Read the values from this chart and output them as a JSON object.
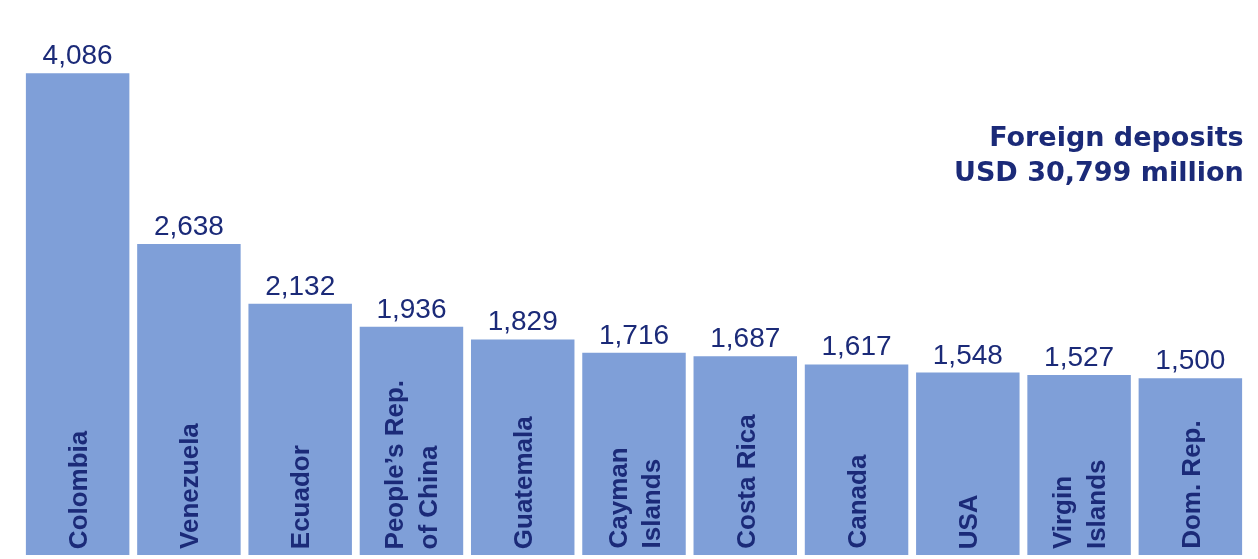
{
  "chart_data": {
    "type": "bar",
    "title": "Foreign deposits",
    "subtitle": "USD 30,799 million",
    "categories": [
      "Colombia",
      "Venezuela",
      "Ecuador",
      "People’s Rep. of China",
      "Guatemala",
      "Cayman Islands",
      "Costa Rica",
      "Canada",
      "USA",
      "Virgin Islands",
      "Dom. Rep."
    ],
    "values": [
      4086,
      2638,
      2132,
      1936,
      1829,
      1716,
      1687,
      1617,
      1548,
      1527,
      1500
    ],
    "value_labels": [
      "4,086",
      "2,638",
      "2,132",
      "1,936",
      "1,829",
      "1,716",
      "1,687",
      "1,617",
      "1,548",
      "1,527",
      "1,500"
    ],
    "color": "#7f9fd8"
  }
}
